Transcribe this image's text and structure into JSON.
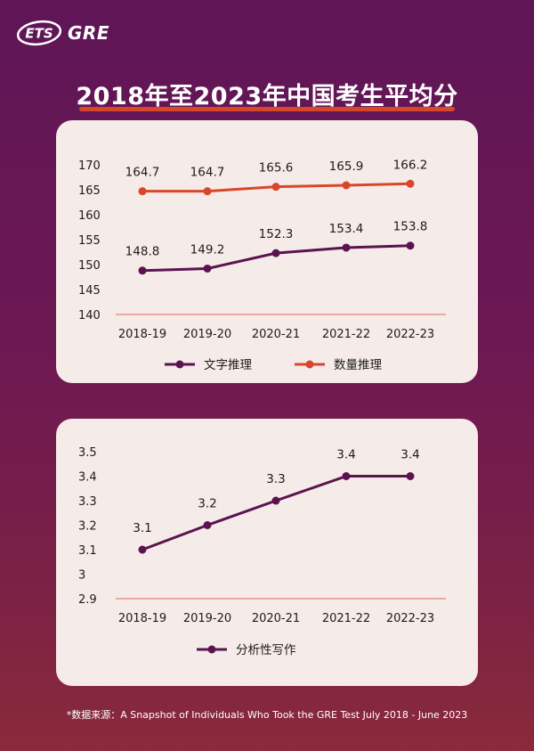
{
  "header": {
    "logo_left": "ETS",
    "logo_right": "GRE",
    "title": "2018年至2023年中国考生平均分"
  },
  "colors": {
    "verbal": "#5b1350",
    "quant": "#d9472b",
    "writing": "#5b1350",
    "axis_line": "#e2857a"
  },
  "chart_data": [
    {
      "type": "line",
      "categories": [
        "2018-19",
        "2019-20",
        "2020-21",
        "2021-22",
        "2022-23"
      ],
      "yticks": [
        "140",
        "145",
        "150",
        "155",
        "160",
        "165",
        "170"
      ],
      "ylim": [
        140,
        170
      ],
      "series": [
        {
          "name": "文字推理",
          "values": [
            148.8,
            149.2,
            152.3,
            153.4,
            153.8
          ],
          "labels": [
            "148.8",
            "149.2",
            "152.3",
            "153.4",
            "153.8"
          ]
        },
        {
          "name": "数量推理",
          "values": [
            164.7,
            164.7,
            165.6,
            165.9,
            166.2
          ],
          "labels": [
            "164.7",
            "164.7",
            "165.6",
            "165.9",
            "166.2"
          ]
        }
      ],
      "grid": false,
      "legend": "bottom"
    },
    {
      "type": "line",
      "categories": [
        "2018-19",
        "2019-20",
        "2020-21",
        "2021-22",
        "2022-23"
      ],
      "yticks": [
        "2.9",
        "3",
        "3.1",
        "3.2",
        "3.3",
        "3.4",
        "3.5"
      ],
      "ylim": [
        2.9,
        3.5
      ],
      "series": [
        {
          "name": "分析性写作",
          "values": [
            3.1,
            3.2,
            3.3,
            3.4,
            3.4
          ],
          "labels": [
            "3.1",
            "3.2",
            "3.3",
            "3.4",
            "3.4"
          ]
        }
      ],
      "grid": false,
      "legend": "bottom"
    }
  ],
  "footnote": "*数据来源：A Snapshot of Individuals Who Took the GRE Test July 2018 - June 2023"
}
